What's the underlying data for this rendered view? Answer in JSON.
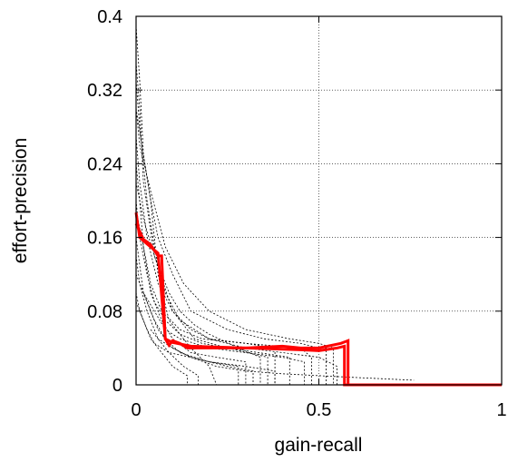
{
  "chart_data": {
    "type": "line",
    "title": "",
    "xlabel": "gain-recall",
    "ylabel": "effort-precision",
    "xlim": [
      0,
      1
    ],
    "ylim": [
      0,
      0.4
    ],
    "x_ticks": [
      0,
      0.5,
      1
    ],
    "x_tick_labels": [
      "0",
      "0.5",
      "1"
    ],
    "y_ticks": [
      0,
      0.08,
      0.16,
      0.24,
      0.32,
      0.4
    ],
    "y_tick_labels": [
      "0",
      "0.08",
      "0.16",
      "0.24",
      "0.32",
      "0.4"
    ],
    "grid": true,
    "legend": "none",
    "highlight_series": [
      {
        "color": "#ff0000",
        "x": [
          0.0,
          0.01,
          0.03,
          0.06,
          0.08,
          0.09,
          0.1,
          0.12,
          0.14,
          0.2,
          0.3,
          0.4,
          0.45,
          0.5,
          0.56,
          0.58,
          0.58,
          0.6,
          1.0
        ],
        "y": [
          0.187,
          0.16,
          0.153,
          0.143,
          0.05,
          0.043,
          0.048,
          0.045,
          0.04,
          0.04,
          0.04,
          0.042,
          0.04,
          0.04,
          0.045,
          0.048,
          0.0,
          0.0,
          0.0
        ]
      },
      {
        "color": "#ff0000",
        "x": [
          0.0,
          0.02,
          0.04,
          0.06,
          0.07,
          0.08,
          0.1,
          0.15,
          0.3,
          0.45,
          0.5,
          0.55,
          0.57,
          0.57,
          0.6,
          1.0
        ],
        "y": [
          0.175,
          0.158,
          0.152,
          0.14,
          0.14,
          0.05,
          0.046,
          0.042,
          0.04,
          0.038,
          0.037,
          0.04,
          0.042,
          0.0,
          0.0,
          0.0
        ]
      }
    ],
    "background_series": [
      {
        "x": [
          0.0,
          0.01,
          0.02,
          0.04,
          0.06,
          0.09,
          0.15,
          0.2,
          0.22
        ],
        "y": [
          0.39,
          0.33,
          0.25,
          0.2,
          0.12,
          0.07,
          0.04,
          0.02,
          0.0
        ]
      },
      {
        "x": [
          0.0,
          0.01,
          0.03,
          0.05,
          0.08,
          0.12,
          0.2,
          0.3,
          0.4,
          0.5,
          0.55,
          0.55
        ],
        "y": [
          0.33,
          0.28,
          0.2,
          0.15,
          0.1,
          0.07,
          0.05,
          0.04,
          0.035,
          0.03,
          0.02,
          0.0
        ]
      },
      {
        "x": [
          0.0,
          0.02,
          0.04,
          0.06,
          0.1,
          0.15,
          0.25,
          0.35,
          0.45,
          0.5,
          0.52,
          0.52
        ],
        "y": [
          0.3,
          0.25,
          0.2,
          0.16,
          0.12,
          0.08,
          0.06,
          0.05,
          0.045,
          0.04,
          0.04,
          0.0
        ]
      },
      {
        "x": [
          0.0,
          0.01,
          0.03,
          0.06,
          0.1,
          0.15,
          0.2,
          0.3,
          0.38,
          0.38
        ],
        "y": [
          0.27,
          0.22,
          0.16,
          0.11,
          0.08,
          0.06,
          0.05,
          0.045,
          0.04,
          0.0
        ]
      },
      {
        "x": [
          0.0,
          0.01,
          0.02,
          0.04,
          0.07,
          0.1,
          0.15,
          0.22,
          0.3,
          0.3
        ],
        "y": [
          0.24,
          0.2,
          0.15,
          0.1,
          0.07,
          0.05,
          0.035,
          0.03,
          0.025,
          0.0
        ]
      },
      {
        "x": [
          0.0,
          0.02,
          0.05,
          0.09,
          0.12,
          0.16,
          0.2,
          0.28,
          0.34,
          0.34
        ],
        "y": [
          0.22,
          0.18,
          0.14,
          0.1,
          0.08,
          0.065,
          0.055,
          0.04,
          0.03,
          0.0
        ]
      },
      {
        "x": [
          0.0,
          0.01,
          0.03,
          0.05,
          0.08,
          0.12,
          0.18,
          0.25,
          0.42,
          0.42
        ],
        "y": [
          0.2,
          0.16,
          0.12,
          0.09,
          0.07,
          0.055,
          0.045,
          0.04,
          0.03,
          0.0
        ]
      },
      {
        "x": [
          0.0,
          0.02,
          0.04,
          0.07,
          0.12,
          0.18,
          0.3,
          0.45,
          0.48,
          0.48
        ],
        "y": [
          0.19,
          0.15,
          0.11,
          0.08,
          0.06,
          0.05,
          0.045,
          0.04,
          0.03,
          0.0
        ]
      },
      {
        "x": [
          0.0,
          0.01,
          0.02,
          0.05,
          0.08,
          0.12,
          0.2,
          0.28,
          0.28
        ],
        "y": [
          0.16,
          0.13,
          0.1,
          0.07,
          0.05,
          0.035,
          0.025,
          0.02,
          0.0
        ]
      },
      {
        "x": [
          0.0,
          0.01,
          0.03,
          0.06,
          0.09,
          0.13,
          0.17,
          0.17
        ],
        "y": [
          0.14,
          0.11,
          0.08,
          0.05,
          0.035,
          0.02,
          0.01,
          0.0
        ]
      },
      {
        "x": [
          0.0,
          0.02,
          0.05,
          0.08,
          0.12,
          0.2,
          0.3,
          0.4,
          0.46,
          0.46
        ],
        "y": [
          0.12,
          0.1,
          0.08,
          0.06,
          0.05,
          0.04,
          0.035,
          0.03,
          0.025,
          0.0
        ]
      },
      {
        "x": [
          0.0,
          0.01,
          0.03,
          0.05,
          0.09,
          0.15,
          0.25,
          0.32,
          0.32
        ],
        "y": [
          0.1,
          0.08,
          0.06,
          0.045,
          0.035,
          0.03,
          0.02,
          0.015,
          0.0
        ]
      },
      {
        "x": [
          0.0,
          0.02,
          0.04,
          0.07,
          0.1,
          0.14,
          0.14
        ],
        "y": [
          0.09,
          0.07,
          0.05,
          0.035,
          0.02,
          0.01,
          0.0
        ]
      },
      {
        "x": [
          0.0,
          0.01,
          0.04,
          0.08,
          0.13,
          0.2,
          0.3,
          0.42,
          0.5,
          0.54,
          0.54
        ],
        "y": [
          0.3,
          0.26,
          0.21,
          0.15,
          0.11,
          0.08,
          0.06,
          0.05,
          0.045,
          0.04,
          0.0
        ]
      },
      {
        "x": [
          0.0,
          0.01,
          0.02,
          0.05,
          0.1,
          0.16,
          0.25,
          0.36,
          0.36
        ],
        "y": [
          0.35,
          0.3,
          0.22,
          0.14,
          0.08,
          0.05,
          0.04,
          0.03,
          0.0
        ]
      },
      {
        "x": [
          0.02,
          0.04,
          0.06,
          0.1,
          0.15,
          0.22,
          0.3,
          0.4,
          0.5,
          0.6,
          0.76
        ],
        "y": [
          0.1,
          0.08,
          0.06,
          0.04,
          0.03,
          0.02,
          0.015,
          0.012,
          0.01,
          0.008,
          0.005
        ]
      },
      {
        "x": [
          0.04,
          0.06,
          0.1,
          0.15,
          0.2,
          0.3,
          0.38,
          0.38
        ],
        "y": [
          0.06,
          0.05,
          0.04,
          0.03,
          0.025,
          0.02,
          0.015,
          0.0
        ]
      }
    ]
  }
}
